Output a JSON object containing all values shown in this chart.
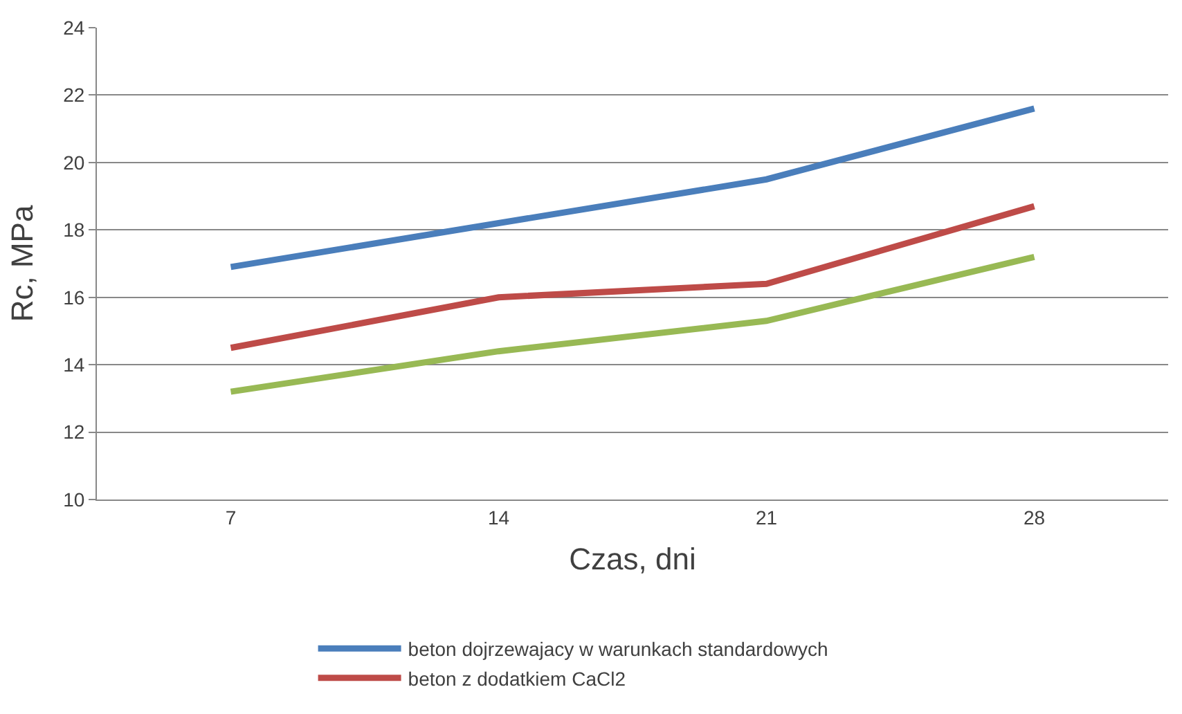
{
  "chart_data": {
    "type": "line",
    "xlabel": "Czas, dni",
    "ylabel": "Rc, MPa",
    "categories": [
      "7",
      "14",
      "21",
      "28"
    ],
    "series": [
      {
        "name": "beton dojrzewajacy w warunkach standardowych",
        "color": "#4a7ebb",
        "values": [
          16.9,
          18.2,
          19.5,
          21.6
        ]
      },
      {
        "name": "beton z dodatkiem CaCl2",
        "color": "#be4b48",
        "values": [
          14.5,
          16.0,
          16.4,
          18.7
        ]
      },
      {
        "color": "#98b954",
        "values": [
          13.2,
          14.4,
          15.3,
          17.2
        ]
      }
    ],
    "ylim": [
      10,
      24
    ],
    "yticks": [
      10,
      12,
      14,
      16,
      18,
      20,
      22,
      24
    ],
    "grid": "y",
    "legend": "bottom",
    "marker": "none",
    "line_style": "solid"
  }
}
